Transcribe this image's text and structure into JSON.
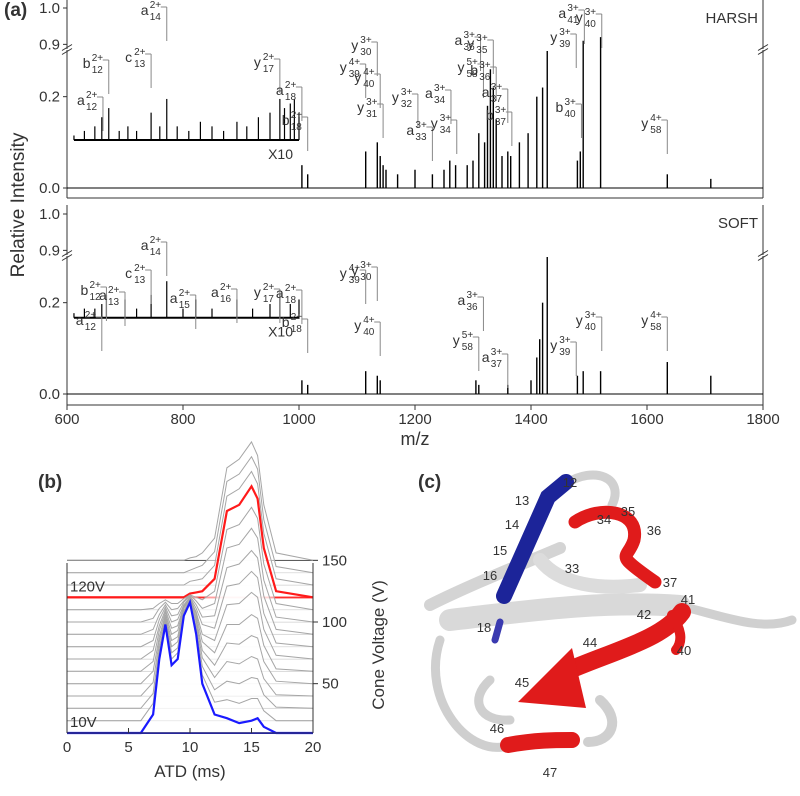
{
  "panel_labels": [
    "(a)",
    "(b)",
    "(c)"
  ],
  "chart_data": [
    {
      "type": "spectrum",
      "label": "HARSH",
      "label_color": "#e8202a",
      "y_axis_label": "Relative Intensity",
      "color": "#000000",
      "xlim": [
        600,
        1800
      ],
      "ylim": [
        0,
        1
      ],
      "y_break": [
        0.3,
        0.89
      ],
      "yticks": [
        {
          "value": 0,
          "label": "0.0"
        },
        0.2,
        0.9,
        {
          "value": 1,
          "label": "1.0"
        }
      ],
      "x": [
        1005,
        1015,
        1115,
        1135,
        1140,
        1145,
        1150,
        1170,
        1200,
        1230,
        1250,
        1260,
        1270,
        1290,
        1300,
        1310,
        1320,
        1325,
        1330,
        1335,
        1340,
        1350,
        1360,
        1365,
        1380,
        1395,
        1410,
        1420,
        1428,
        1480,
        1485,
        1490,
        1520,
        1635,
        1710
      ],
      "values": [
        0.05,
        0.03,
        0.08,
        0.1,
        0.07,
        0.05,
        0.04,
        0.03,
        0.04,
        0.03,
        0.04,
        0.06,
        0.05,
        0.05,
        0.06,
        0.12,
        0.1,
        0.18,
        0.26,
        0.22,
        0.15,
        0.07,
        0.08,
        0.07,
        0.1,
        0.12,
        0.2,
        0.22,
        0.3,
        0.06,
        0.08,
        0.91,
        0.92,
        0.03,
        0.02
      ],
      "inset": {
        "label": "X10",
        "baseline": 0.105,
        "x": [
          612,
          630,
          648,
          660,
          672,
          690,
          705,
          720,
          745,
          760,
          772,
          790,
          810,
          830,
          850,
          870,
          893,
          910,
          930,
          950,
          967,
          975,
          985,
          992,
          1000
        ],
        "values": [
          0.01,
          0.02,
          0.03,
          0.05,
          0.07,
          0.02,
          0.03,
          0.02,
          0.06,
          0.03,
          0.09,
          0.03,
          0.02,
          0.04,
          0.03,
          0.02,
          0.04,
          0.03,
          0.05,
          0.06,
          0.09,
          0.07,
          0.08,
          0.09,
          0.06
        ]
      },
      "annotations": [
        {
          "ion": "a",
          "index": "12",
          "charge": "2+",
          "x": 662
        },
        {
          "ion": "b",
          "index": "12",
          "charge": "2+",
          "x": 672
        },
        {
          "ion": "c",
          "index": "13",
          "charge": "2+",
          "x": 745
        },
        {
          "ion": "a",
          "index": "14",
          "charge": "2+",
          "x": 772
        },
        {
          "ion": "y",
          "index": "17",
          "charge": "2+",
          "x": 967
        },
        {
          "ion": "a",
          "index": "18",
          "charge": "2+",
          "x": 1005
        },
        {
          "ion": "b",
          "index": "18",
          "charge": "2+",
          "x": 1015
        },
        {
          "ion": "y",
          "index": "39",
          "charge": "4+",
          "x": 1115
        },
        {
          "ion": "y",
          "index": "30",
          "charge": "3+",
          "x": 1135
        },
        {
          "ion": "y",
          "index": "40",
          "charge": "4+",
          "x": 1140
        },
        {
          "ion": "y",
          "index": "31",
          "charge": "3+",
          "x": 1145
        },
        {
          "ion": "y",
          "index": "32",
          "charge": "3+",
          "x": 1205
        },
        {
          "ion": "a",
          "index": "33",
          "charge": "3+",
          "x": 1230
        },
        {
          "ion": "a",
          "index": "34",
          "charge": "3+",
          "x": 1262
        },
        {
          "ion": "y",
          "index": "34",
          "charge": "3+",
          "x": 1272
        },
        {
          "ion": "a",
          "index": "36",
          "charge": "3+",
          "x": 1313
        },
        {
          "ion": "y",
          "index": "58",
          "charge": "5+",
          "x": 1318
        },
        {
          "ion": "y",
          "index": "35",
          "charge": "3+",
          "x": 1335
        },
        {
          "ion": "b",
          "index": "36",
          "charge": "3+",
          "x": 1340
        },
        {
          "ion": "a",
          "index": "37",
          "charge": "3+",
          "x": 1360
        },
        {
          "ion": "b",
          "index": "37",
          "charge": "3+",
          "x": 1367
        },
        {
          "ion": "y",
          "index": "39",
          "charge": "3+",
          "x": 1478
        },
        {
          "ion": "a",
          "index": "41",
          "charge": "3+",
          "x": 1492
        },
        {
          "ion": "y",
          "index": "40",
          "charge": "3+",
          "x": 1522
        },
        {
          "ion": "b",
          "index": "40",
          "charge": "3+",
          "x": 1487
        },
        {
          "ion": "y",
          "index": "58",
          "charge": "4+",
          "x": 1635
        }
      ]
    },
    {
      "type": "spectrum",
      "label": "SOFT",
      "label_color": "#2626c9",
      "x_axis_label": "m/z",
      "color": "#000000",
      "xlim": [
        600,
        1800
      ],
      "xticks": [
        600,
        800,
        1000,
        1200,
        1400,
        1600,
        1800
      ],
      "ylim": [
        0,
        1
      ],
      "y_break": [
        0.3,
        0.89
      ],
      "yticks": [
        {
          "value": 0,
          "label": "0.0"
        },
        0.2,
        0.9,
        {
          "value": 1,
          "label": "1.0"
        }
      ],
      "x": [
        1005,
        1015,
        1115,
        1135,
        1140,
        1305,
        1310,
        1360,
        1400,
        1410,
        1415,
        1420,
        1428,
        1480,
        1490,
        1520,
        1635,
        1710
      ],
      "values": [
        0.03,
        0.02,
        0.05,
        0.04,
        0.03,
        0.03,
        0.02,
        0.02,
        0.03,
        0.08,
        0.12,
        0.2,
        0.3,
        0.04,
        0.05,
        0.05,
        0.07,
        0.04
      ],
      "inset": {
        "label": "X10",
        "baseline": 0.167,
        "x": [
          612,
          630,
          648,
          660,
          668,
          700,
          720,
          745,
          772,
          800,
          822,
          850,
          893,
          920,
          950,
          967,
          985,
          1000
        ],
        "values": [
          0.01,
          0.02,
          0.02,
          0.03,
          0.05,
          0.04,
          0.02,
          0.05,
          0.08,
          0.02,
          0.04,
          0.02,
          0.04,
          0.02,
          0.03,
          0.05,
          0.03,
          0.04
        ]
      },
      "annotations": [
        {
          "ion": "a",
          "index": "12",
          "charge": "2+",
          "x": 660
        },
        {
          "ion": "b",
          "index": "12",
          "charge": "2+",
          "x": 668
        },
        {
          "ion": "a",
          "index": "13",
          "charge": "2+",
          "x": 700
        },
        {
          "ion": "c",
          "index": "13",
          "charge": "2+",
          "x": 745
        },
        {
          "ion": "a",
          "index": "14",
          "charge": "2+",
          "x": 772
        },
        {
          "ion": "a",
          "index": "15",
          "charge": "2+",
          "x": 822
        },
        {
          "ion": "a",
          "index": "16",
          "charge": "2+",
          "x": 893
        },
        {
          "ion": "y",
          "index": "17",
          "charge": "2+",
          "x": 967
        },
        {
          "ion": "a",
          "index": "18",
          "charge": "2+",
          "x": 1005
        },
        {
          "ion": "b",
          "index": "18",
          "charge": "2+",
          "x": 1015
        },
        {
          "ion": "y",
          "index": "39",
          "charge": "4+",
          "x": 1115
        },
        {
          "ion": "y",
          "index": "30",
          "charge": "3+",
          "x": 1135
        },
        {
          "ion": "y",
          "index": "40",
          "charge": "4+",
          "x": 1140
        },
        {
          "ion": "a",
          "index": "36",
          "charge": "3+",
          "x": 1318
        },
        {
          "ion": "y",
          "index": "58",
          "charge": "5+",
          "x": 1310
        },
        {
          "ion": "a",
          "index": "37",
          "charge": "3+",
          "x": 1360
        },
        {
          "ion": "y",
          "index": "39",
          "charge": "3+",
          "x": 1478
        },
        {
          "ion": "y",
          "index": "40",
          "charge": "3+",
          "x": 1522
        },
        {
          "ion": "y",
          "index": "58",
          "charge": "4+",
          "x": 1635
        }
      ]
    },
    {
      "type": "ridge",
      "x_axis_label": "ATD (ms)",
      "y_axis_label": "Cone Voltage (V)",
      "xlim": [
        0,
        20
      ],
      "xticks": [
        0,
        5,
        10,
        15,
        20
      ],
      "ylim": [
        10,
        160
      ],
      "yticks": [
        50,
        100,
        150
      ],
      "x": [
        0,
        6,
        7,
        7.5,
        8,
        8.5,
        9,
        9.5,
        10,
        10.5,
        11,
        12,
        13,
        14,
        15,
        15.5,
        16,
        17,
        20
      ],
      "series": [
        {
          "name": "10V",
          "voltage": 10,
          "color": "#1a1aff",
          "values": [
            0,
            0,
            15,
            60,
            88,
            55,
            60,
            95,
            106,
            80,
            40,
            15,
            12,
            8,
            10,
            12,
            5,
            0,
            0
          ]
        },
        {
          "voltage": 20,
          "color": "#a6a6a6",
          "values": [
            0,
            0,
            14,
            55,
            80,
            50,
            55,
            86,
            97,
            73,
            37,
            15,
            17,
            14,
            18,
            18,
            8,
            0,
            0
          ]
        },
        {
          "voltage": 30,
          "color": "#a6a6a6",
          "values": [
            0,
            0,
            12,
            49,
            72,
            45,
            49,
            78,
            87,
            66,
            34,
            15,
            22,
            20,
            25,
            24,
            11,
            1,
            0
          ]
        },
        {
          "voltage": 40,
          "color": "#a6a6a6",
          "values": [
            0,
            0,
            11,
            44,
            64,
            40,
            44,
            69,
            78,
            60,
            31,
            15,
            28,
            26,
            32,
            30,
            14,
            1,
            0
          ]
        },
        {
          "voltage": 50,
          "color": "#a6a6a6",
          "values": [
            0,
            0,
            10,
            38,
            56,
            35,
            38,
            61,
            69,
            53,
            27,
            15,
            33,
            32,
            39,
            37,
            18,
            2,
            0
          ]
        },
        {
          "voltage": 60,
          "color": "#a6a6a6",
          "values": [
            0,
            0,
            8,
            33,
            48,
            30,
            33,
            52,
            60,
            46,
            24,
            15,
            38,
            38,
            46,
            43,
            21,
            2,
            0
          ]
        },
        {
          "voltage": 70,
          "color": "#a6a6a6",
          "values": [
            0,
            0,
            7,
            27,
            40,
            25,
            27,
            43,
            49,
            38,
            20,
            15,
            44,
            45,
            54,
            50,
            24,
            3,
            0
          ]
        },
        {
          "voltage": 80,
          "color": "#a6a6a6",
          "values": [
            0,
            0,
            5,
            22,
            32,
            20,
            22,
            34,
            40,
            31,
            18,
            15,
            49,
            51,
            61,
            56,
            27,
            3,
            0
          ]
        },
        {
          "voltage": 90,
          "color": "#a6a6a6",
          "values": [
            0,
            0,
            4,
            16,
            24,
            15,
            16,
            26,
            31,
            24,
            14,
            15,
            54,
            57,
            68,
            62,
            31,
            4,
            0
          ]
        },
        {
          "voltage": 100,
          "color": "#a6a6a6",
          "values": [
            0,
            0,
            3,
            11,
            16,
            10,
            11,
            17,
            22,
            17,
            11,
            15,
            60,
            63,
            76,
            68,
            34,
            4,
            0
          ]
        },
        {
          "voltage": 110,
          "color": "#a6a6a6",
          "values": [
            0,
            0,
            1,
            5,
            8,
            5,
            5,
            9,
            12,
            10,
            8,
            15,
            65,
            69,
            83,
            74,
            37,
            5,
            0
          ]
        },
        {
          "name": "120V",
          "voltage": 120,
          "color": "#ff1a1a",
          "values": [
            0,
            0,
            0,
            0,
            0,
            0,
            0,
            0,
            3,
            4,
            5,
            15,
            70,
            75,
            90,
            80,
            40,
            5,
            0
          ]
        },
        {
          "voltage": 130,
          "color": "#a6a6a6",
          "values": [
            0,
            0,
            0,
            0,
            0,
            0,
            0,
            0,
            3,
            4,
            5,
            16,
            72,
            78,
            92,
            82,
            42,
            5,
            0
          ]
        },
        {
          "voltage": 140,
          "color": "#a6a6a6",
          "values": [
            0,
            0,
            0,
            0,
            0,
            0,
            0,
            0,
            2,
            4,
            6,
            17,
            74,
            80,
            94,
            84,
            43,
            5,
            0
          ]
        },
        {
          "voltage": 150,
          "color": "#a6a6a6",
          "values": [
            0,
            0,
            0,
            0,
            0,
            0,
            0,
            0,
            2,
            3,
            6,
            18,
            75,
            82,
            96,
            85,
            45,
            6,
            0
          ]
        }
      ]
    }
  ],
  "structure": {
    "residue_labels": [
      "12",
      "13",
      "14",
      "15",
      "16",
      "18",
      "33",
      "34",
      "35",
      "36",
      "37",
      "40",
      "41",
      "42",
      "44",
      "45",
      "46",
      "47"
    ]
  }
}
